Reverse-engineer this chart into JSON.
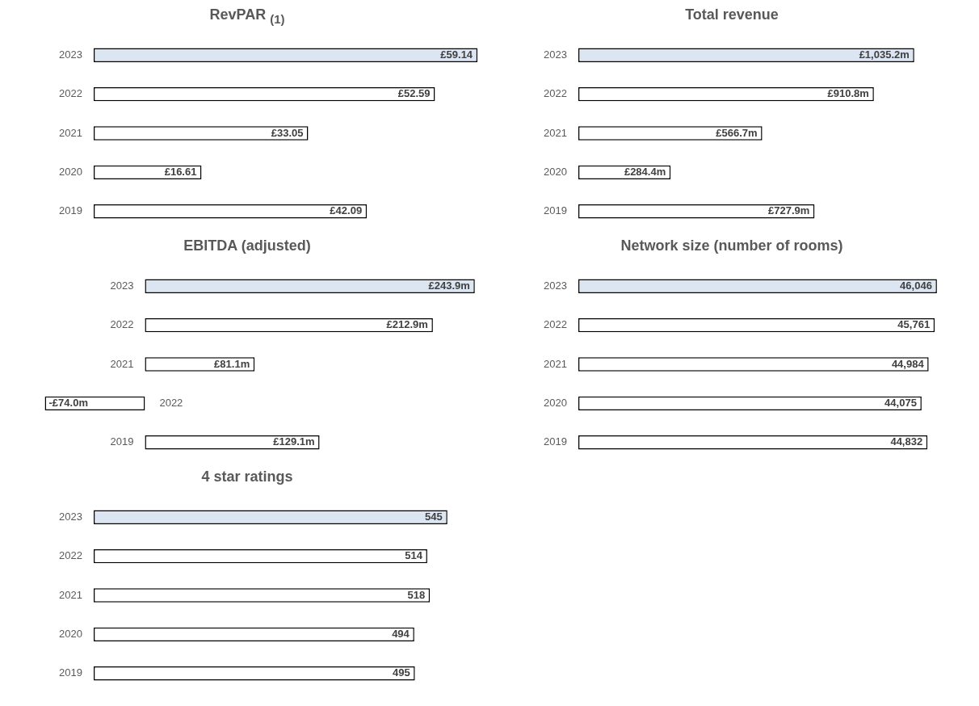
{
  "chart_data": [
    {
      "type": "bar",
      "orientation": "horizontal",
      "title": "RevPAR $_{(1)}$",
      "categories": [
        "2023",
        "2022",
        "2021",
        "2020",
        "2019"
      ],
      "values": [
        59.14,
        52.59,
        33.05,
        16.61,
        42.09
      ],
      "value_labels": [
        "£59.14",
        "£52.59",
        "£33.05",
        "£16.61",
        "£42.09"
      ],
      "colors": [
        "#dce6f2",
        "#ffffff",
        "#ffffff",
        "#ffffff",
        "#ffffff"
      ],
      "tick_labels": "y",
      "legend": false
    },
    {
      "type": "bar",
      "orientation": "horizontal",
      "title": "Total revenue",
      "categories": [
        "2023",
        "2022",
        "2021",
        "2020",
        "2019"
      ],
      "values": [
        1035.2,
        910.8,
        566.7,
        284.4,
        727.9
      ],
      "value_labels": [
        "£1,035.2m",
        "£910.8m",
        "£566.7m",
        "£284.4m",
        "£727.9m"
      ],
      "colors": [
        "#dce6f2",
        "#ffffff",
        "#ffffff",
        "#ffffff",
        "#ffffff"
      ],
      "tick_labels": "y",
      "legend": false
    },
    {
      "type": "bar",
      "orientation": "horizontal",
      "title": "EBITDA (adjusted)",
      "categories": [
        "2023",
        "2022",
        "2021",
        "2022",
        "2019"
      ],
      "values": [
        243.9,
        212.9,
        81.1,
        -74.0,
        129.1
      ],
      "value_labels": [
        "£243.9m",
        "£212.9m",
        "£81.1m",
        "-£74.0m",
        "£129.1m"
      ],
      "colors": [
        "#dce6f2",
        "#ffffff",
        "#ffffff",
        "#ffffff",
        "#ffffff"
      ],
      "tick_labels": "y",
      "legend": false
    },
    {
      "type": "bar",
      "orientation": "horizontal",
      "title": "Network size (number of rooms)",
      "categories": [
        "2023",
        "2022",
        "2021",
        "2020",
        "2019"
      ],
      "values": [
        46046,
        45761,
        44984,
        44075,
        44832
      ],
      "value_labels": [
        "46,046",
        "45,761",
        "44,984",
        "44,075",
        "44,832"
      ],
      "colors": [
        "#dce6f2",
        "#ffffff",
        "#ffffff",
        "#ffffff",
        "#ffffff"
      ],
      "tick_labels": "y",
      "legend": false
    },
    {
      "type": "bar",
      "orientation": "horizontal",
      "title": "4 star ratings",
      "categories": [
        "2023",
        "2022",
        "2021",
        "2020",
        "2019"
      ],
      "values": [
        545,
        514,
        518,
        494,
        495
      ],
      "value_labels": [
        "545",
        "514",
        "518",
        "494",
        "495"
      ],
      "colors": [
        "#dce6f2",
        "#ffffff",
        "#ffffff",
        "#ffffff",
        "#ffffff"
      ],
      "tick_labels": "y",
      "legend": false
    }
  ]
}
